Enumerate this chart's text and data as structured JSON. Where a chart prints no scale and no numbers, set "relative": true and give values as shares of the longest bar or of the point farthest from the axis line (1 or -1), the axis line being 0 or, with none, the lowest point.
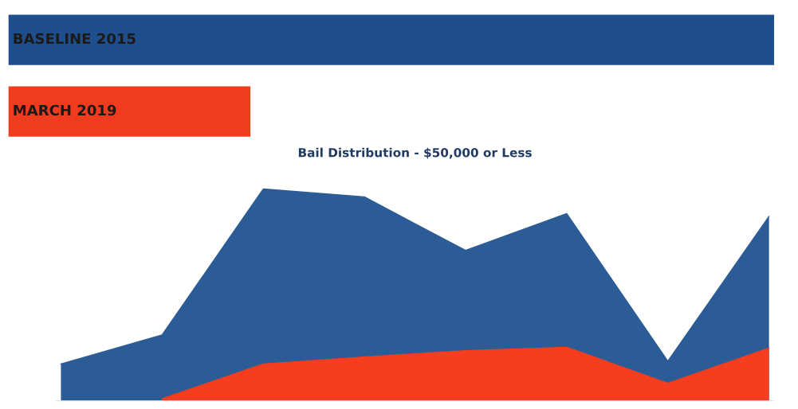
{
  "chart_data": [
    {
      "type": "bar",
      "orientation": "horizontal",
      "relative": true,
      "categories": [
        "BASELINE 2015",
        "MARCH 2019"
      ],
      "values": [
        1,
        0.317
      ],
      "colors": [
        "#1f4e8c",
        "#f03c1e"
      ],
      "grid": false,
      "legend": false
    },
    {
      "type": "area",
      "relative": true,
      "title": "Bail Distribution - $50,000 or Less",
      "categories": [
        null,
        null,
        null,
        null,
        null,
        null,
        null,
        null
      ],
      "series": [
        {
          "color": "#2b5c96",
          "values": [
            0.174,
            0.311,
            1,
            0.963,
            0.71,
            0.884,
            0.187,
            0.871
          ]
        },
        {
          "color": "#f53d1f",
          "values": [
            null,
            0.01,
            0.174,
            0.207,
            0.237,
            0.253,
            0.083,
            0.249
          ]
        }
      ],
      "grid": false,
      "legend": false
    }
  ]
}
